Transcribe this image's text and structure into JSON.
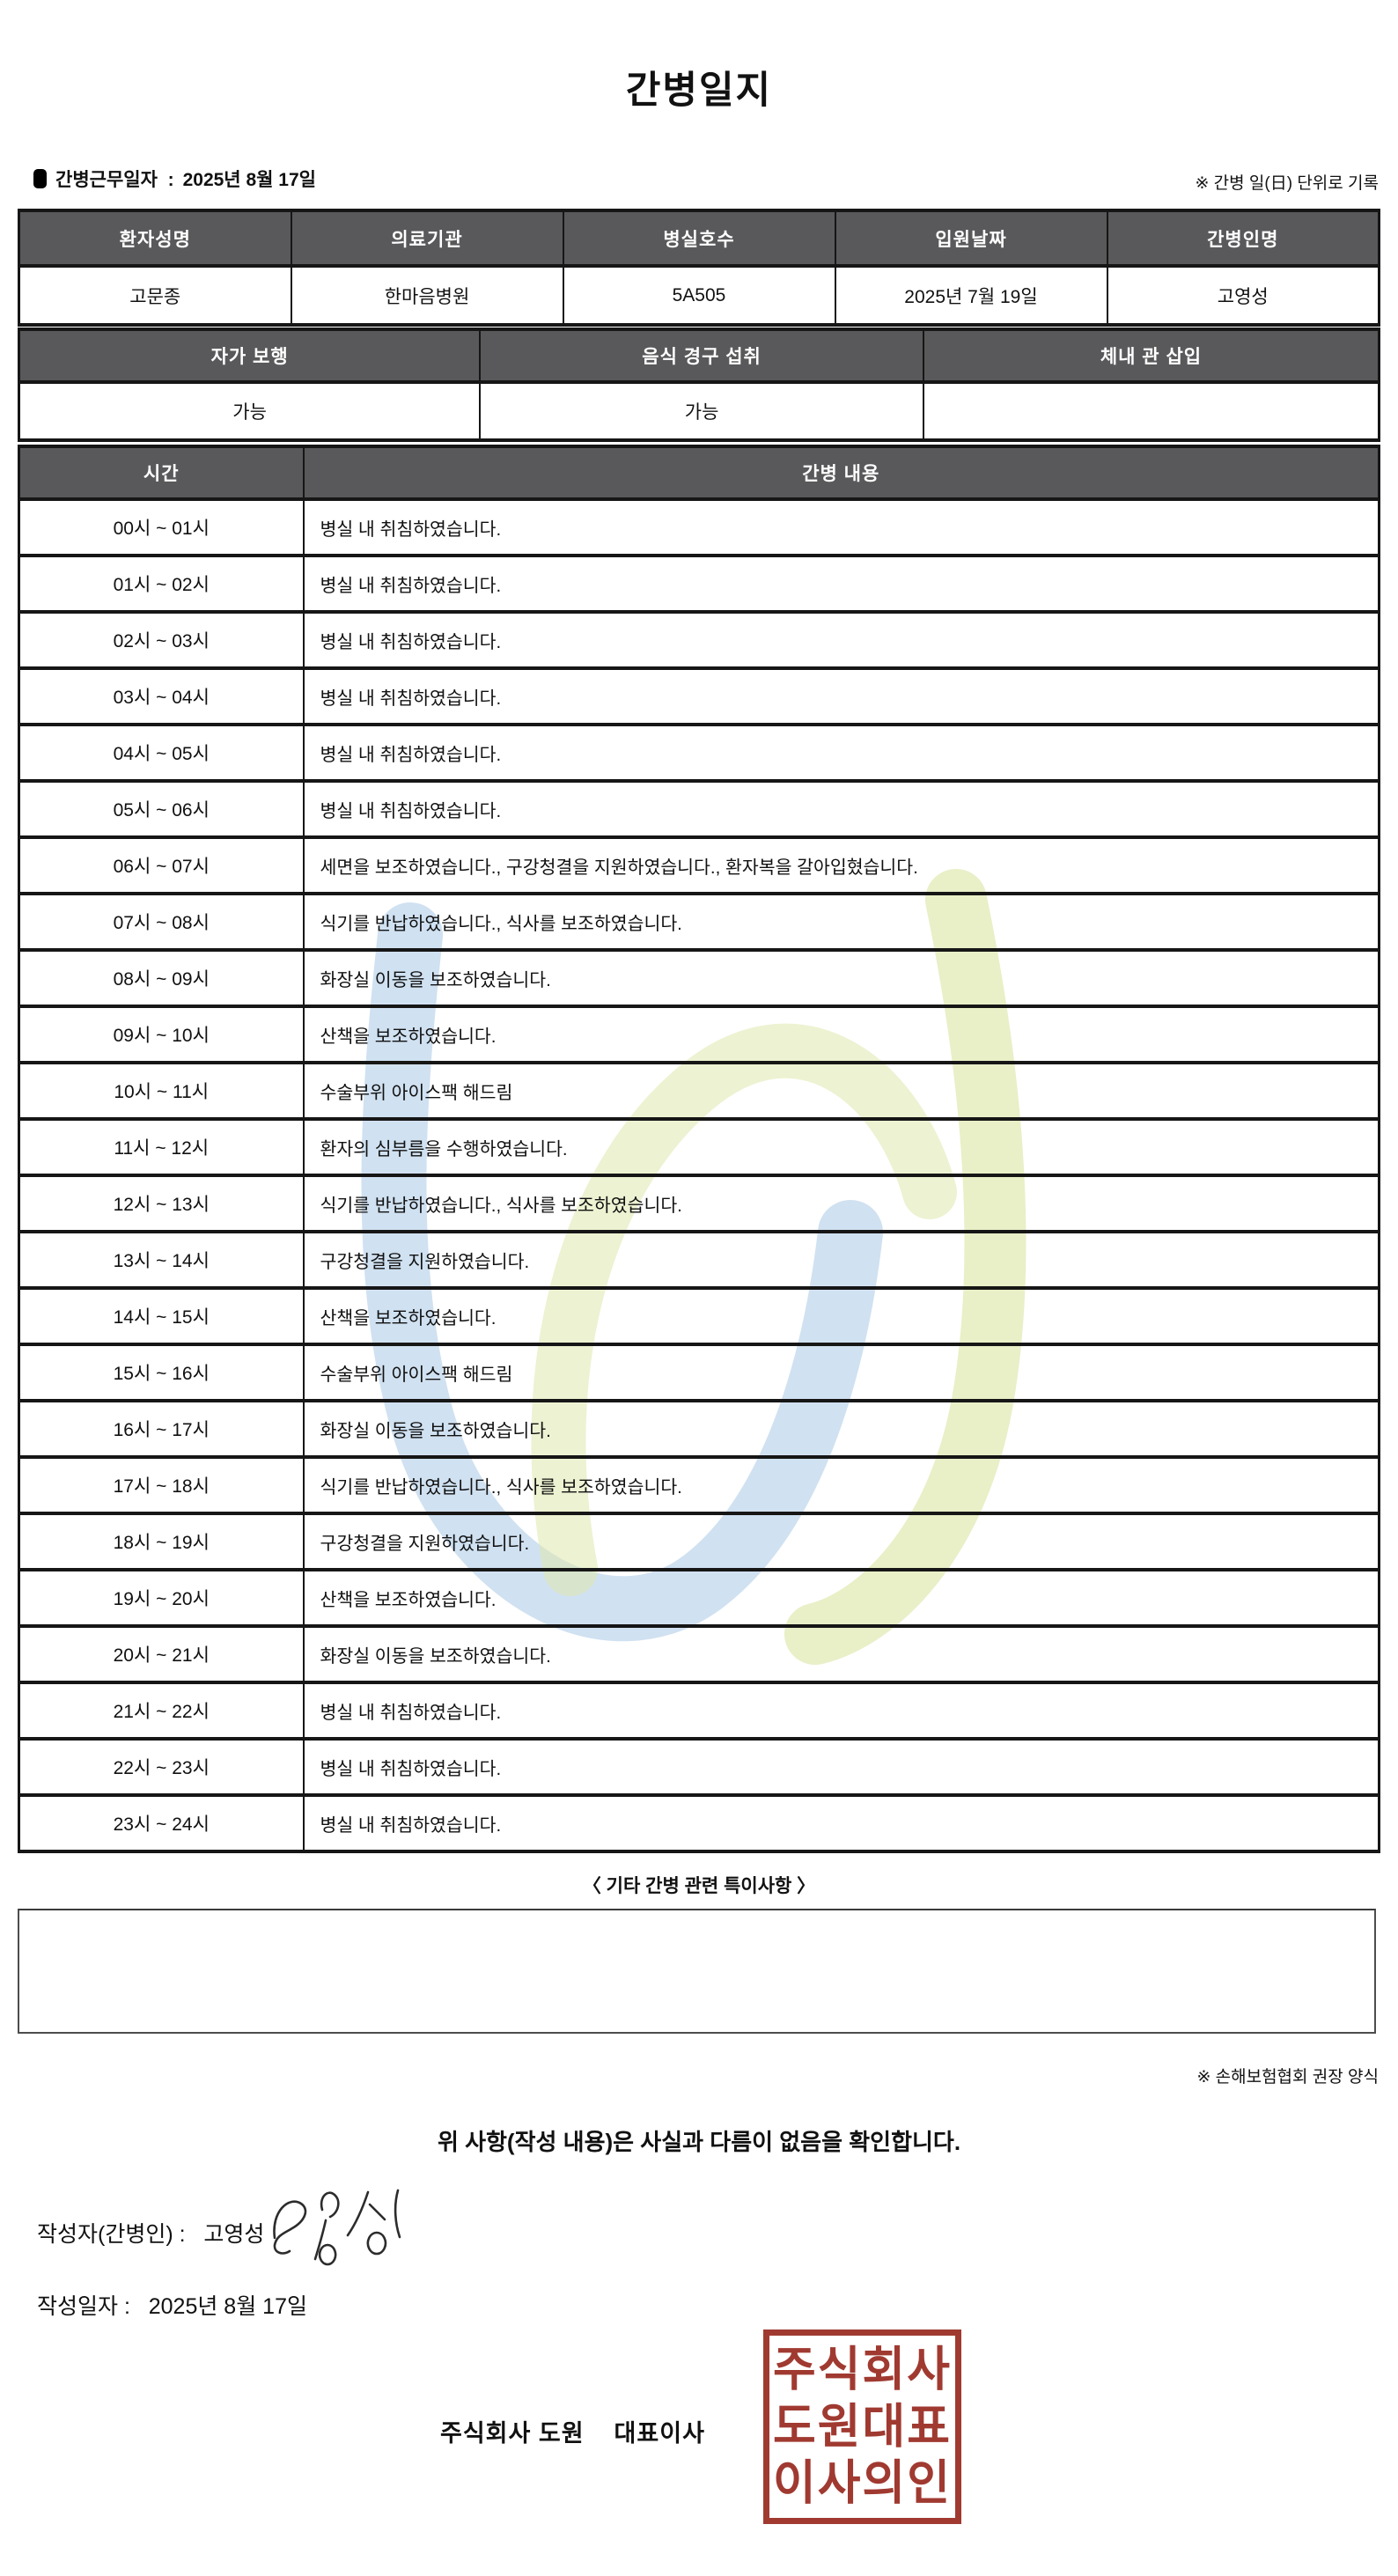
{
  "title": "간병일지",
  "meta": {
    "work_date_label": "간병근무일자  :",
    "work_date": "2025년 8월 17일",
    "unit_note": "※ 간병 일(日) 단위로 기록"
  },
  "info_table": {
    "headers": [
      "환자성명",
      "의료기관",
      "병실호수",
      "입원날짜",
      "간병인명"
    ],
    "values": [
      "고문종",
      "한마음병원",
      "5A505",
      "2025년 7월 19일",
      "고영성"
    ]
  },
  "status_table": {
    "headers": [
      "자가 보행",
      "음식 경구 섭취",
      "체내 관 삽입"
    ],
    "values": [
      "가능",
      "가능",
      ""
    ]
  },
  "log_table": {
    "time_header": "시간",
    "content_header": "간병 내용",
    "rows": [
      {
        "time": "00시 ~ 01시",
        "content": "병실 내 취침하였습니다."
      },
      {
        "time": "01시 ~ 02시",
        "content": "병실 내 취침하였습니다."
      },
      {
        "time": "02시 ~ 03시",
        "content": "병실 내 취침하였습니다."
      },
      {
        "time": "03시 ~ 04시",
        "content": "병실 내 취침하였습니다."
      },
      {
        "time": "04시 ~ 05시",
        "content": "병실 내 취침하였습니다."
      },
      {
        "time": "05시 ~ 06시",
        "content": "병실 내 취침하였습니다."
      },
      {
        "time": "06시 ~ 07시",
        "content": "세면을 보조하였습니다., 구강청결을 지원하였습니다., 환자복을 갈아입혔습니다."
      },
      {
        "time": "07시 ~ 08시",
        "content": "식기를 반납하였습니다., 식사를 보조하였습니다."
      },
      {
        "time": "08시 ~ 09시",
        "content": "화장실 이동을 보조하였습니다."
      },
      {
        "time": "09시 ~ 10시",
        "content": "산책을 보조하였습니다."
      },
      {
        "time": "10시 ~ 11시",
        "content": "수술부위 아이스팩 해드림"
      },
      {
        "time": "11시 ~ 12시",
        "content": "환자의 심부름을 수행하였습니다."
      },
      {
        "time": "12시 ~ 13시",
        "content": "식기를 반납하였습니다., 식사를 보조하였습니다."
      },
      {
        "time": "13시 ~ 14시",
        "content": "구강청결을 지원하였습니다."
      },
      {
        "time": "14시 ~ 15시",
        "content": "산책을 보조하였습니다."
      },
      {
        "time": "15시 ~ 16시",
        "content": "수술부위 아이스팩 해드림"
      },
      {
        "time": "16시 ~ 17시",
        "content": "화장실 이동을 보조하였습니다."
      },
      {
        "time": "17시 ~ 18시",
        "content": "식기를 반납하였습니다., 식사를 보조하였습니다."
      },
      {
        "time": "18시 ~ 19시",
        "content": "구강청결을 지원하였습니다."
      },
      {
        "time": "19시 ~ 20시",
        "content": "산책을 보조하였습니다."
      },
      {
        "time": "20시 ~ 21시",
        "content": "화장실 이동을 보조하였습니다."
      },
      {
        "time": "21시 ~ 22시",
        "content": "병실 내 취침하였습니다."
      },
      {
        "time": "22시 ~ 23시",
        "content": "병실 내 취침하였습니다."
      },
      {
        "time": "23시 ~ 24시",
        "content": "병실 내 취침하였습니다."
      }
    ]
  },
  "notes": {
    "title": "〈 기타 간병 관련 특이사항 〉",
    "content": "",
    "form_note": "※ 손해보험협회 권장 양식"
  },
  "confirmation": "위 사항(작성 내용)은 사실과 다름이 없음을 확인합니다.",
  "signature": {
    "writer_label": "작성자(간병인) :",
    "writer_name": "고영성",
    "date_label": "작성일자 :",
    "date": "2025년 8월 17일"
  },
  "company": {
    "line": "주식회사 도원    대표이사",
    "seal_lines": [
      "주식회사",
      "도원대표",
      "이사의인"
    ],
    "seal_color": "#a03a31"
  },
  "colors": {
    "header_bg": "#59595b",
    "watermark_blue": "#b3cfe9",
    "watermark_green": "#dfe8ad"
  }
}
